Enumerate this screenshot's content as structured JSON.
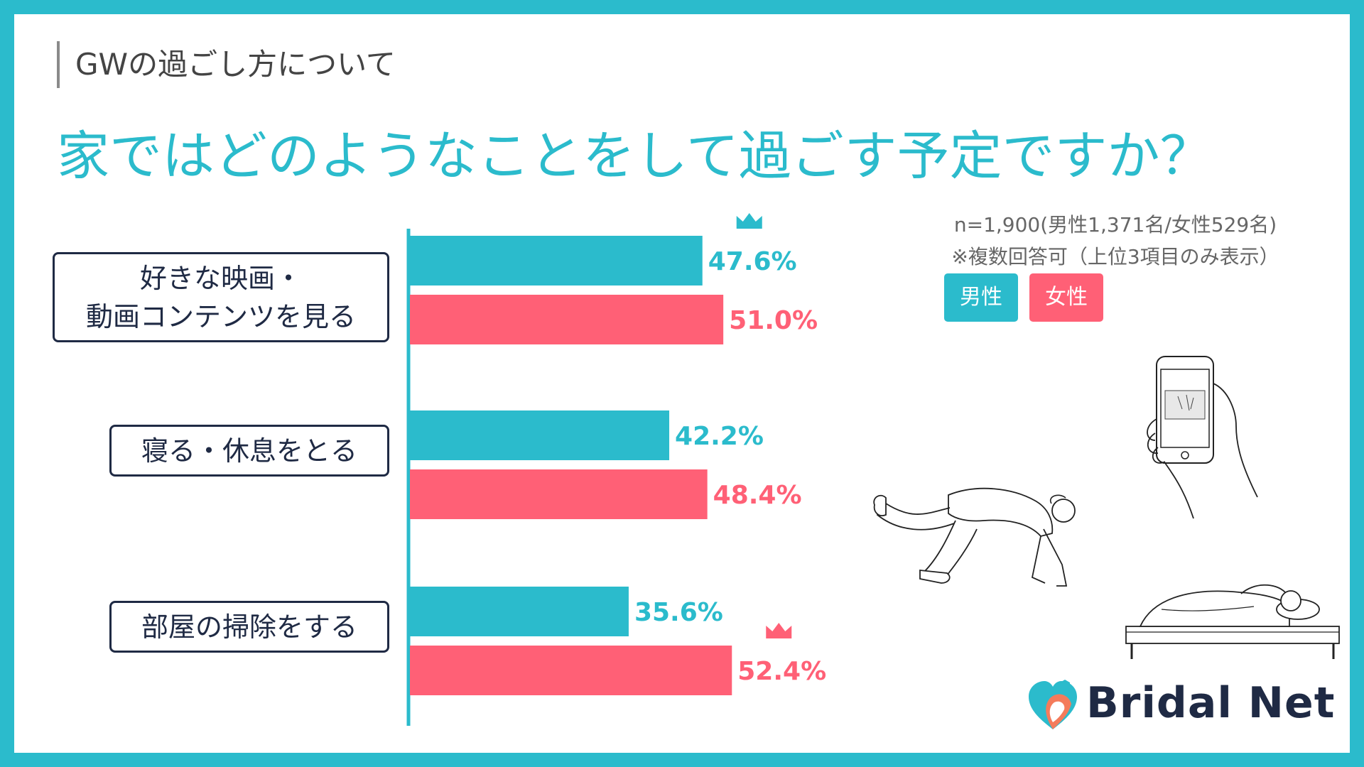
{
  "section_label": "GWの過ごし方について",
  "headline": "家ではどのようなことをして過ごす予定ですか？",
  "sample_note": "n=1,900(男性1,371名/女性529名)",
  "multi_answer_note": "※複数回答可（上位3項目のみ表示）",
  "legend": [
    {
      "label": "男性",
      "color": "#2BBBCC"
    },
    {
      "label": "女性",
      "color": "#FF6076"
    }
  ],
  "logo": {
    "text": "Bridal Net"
  },
  "icons": [
    "crown-icon",
    "smartphone-illustration",
    "crawling-person-illustration",
    "sleeping-person-illustration",
    "bridal-net-logo-mark"
  ],
  "chart_data": {
    "type": "bar",
    "orientation": "horizontal",
    "categories": [
      "好きな映画・\n動画コンテンツを見る",
      "寝る・休息をとる",
      "部屋の掃除をする"
    ],
    "series": [
      {
        "name": "男性",
        "color": "#2BBBCC",
        "values": [
          47.6,
          42.2,
          35.6
        ],
        "labels": [
          "47.6%",
          "42.2%",
          "35.6%"
        ]
      },
      {
        "name": "女性",
        "color": "#FF6076",
        "values": [
          51.0,
          48.4,
          52.4
        ],
        "labels": [
          "51.0%",
          "48.4%",
          "52.4%"
        ]
      }
    ],
    "highlight": [
      {
        "series": 0,
        "index": 0,
        "icon": "crown-icon"
      },
      {
        "series": 1,
        "index": 2,
        "icon": "crown-icon"
      }
    ],
    "xlim": [
      0,
      100
    ],
    "grid": false
  }
}
